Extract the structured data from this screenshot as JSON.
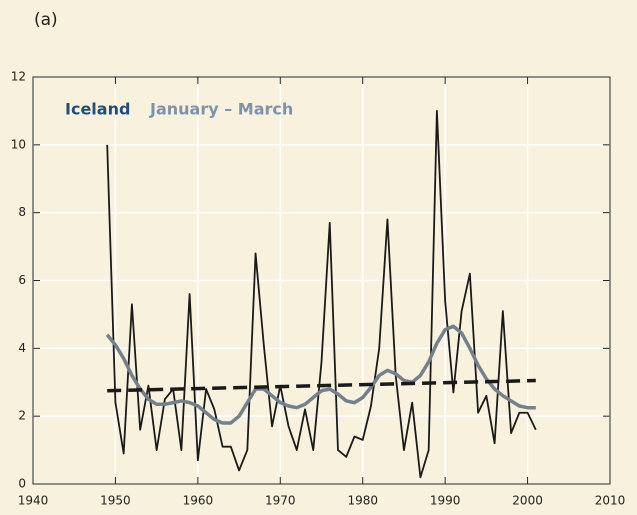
{
  "chart_data": {
    "type": "line",
    "panel_label": "(a)",
    "title": "Iceland",
    "title_color": "#1f4e79",
    "subtitle": "January – March",
    "subtitle_color": "#7f93a8",
    "x": [
      1949,
      1950,
      1951,
      1952,
      1953,
      1954,
      1955,
      1956,
      1957,
      1958,
      1959,
      1960,
      1961,
      1962,
      1963,
      1964,
      1965,
      1966,
      1967,
      1968,
      1969,
      1970,
      1971,
      1972,
      1973,
      1974,
      1975,
      1976,
      1977,
      1978,
      1979,
      1980,
      1981,
      1982,
      1983,
      1984,
      1985,
      1986,
      1987,
      1988,
      1989,
      1990,
      1991,
      1992,
      1993,
      1994,
      1995,
      1996,
      1997,
      1998,
      1999,
      2000,
      2001
    ],
    "series": [
      {
        "color": "#1a1a1a",
        "width": 1.8,
        "values": [
          10.0,
          2.4,
          0.9,
          5.3,
          1.6,
          2.9,
          1.0,
          2.5,
          2.8,
          1.0,
          5.6,
          0.7,
          2.8,
          2.2,
          1.1,
          1.1,
          0.4,
          1.0,
          6.8,
          4.1,
          1.7,
          2.9,
          1.7,
          1.0,
          2.2,
          1.0,
          3.6,
          7.7,
          1.0,
          0.8,
          1.4,
          1.3,
          2.3,
          4.0,
          7.8,
          3.2,
          1.0,
          2.4,
          0.2,
          1.0,
          11.0,
          5.4,
          2.7,
          5.1,
          6.2,
          2.1,
          2.6,
          1.2,
          5.1,
          1.5,
          2.1,
          2.1,
          1.6
        ]
      },
      {
        "color": "#74818c",
        "width": 3.5,
        "values": [
          4.4,
          4.1,
          3.7,
          3.2,
          2.8,
          2.5,
          2.35,
          2.35,
          2.4,
          2.45,
          2.4,
          2.3,
          2.1,
          1.9,
          1.8,
          1.8,
          2.0,
          2.4,
          2.8,
          2.8,
          2.6,
          2.4,
          2.3,
          2.25,
          2.35,
          2.55,
          2.75,
          2.8,
          2.65,
          2.45,
          2.4,
          2.55,
          2.85,
          3.2,
          3.35,
          3.25,
          3.05,
          3.0,
          3.2,
          3.6,
          4.15,
          4.55,
          4.65,
          4.45,
          4.0,
          3.5,
          3.1,
          2.8,
          2.6,
          2.45,
          2.3,
          2.25,
          2.25
        ]
      },
      {
        "color": "#1a1a1a",
        "width": 3.5,
        "dashed": true,
        "x": [
          1949,
          2001
        ],
        "values": [
          2.75,
          3.05
        ]
      }
    ],
    "xlim": [
      1940,
      2010
    ],
    "xticks": [
      1940,
      1950,
      1960,
      1970,
      1980,
      1990,
      2000,
      2010
    ],
    "ylim": [
      0,
      12
    ],
    "yticks": [
      0,
      2,
      4,
      6,
      8,
      10,
      12
    ],
    "grid": true
  }
}
